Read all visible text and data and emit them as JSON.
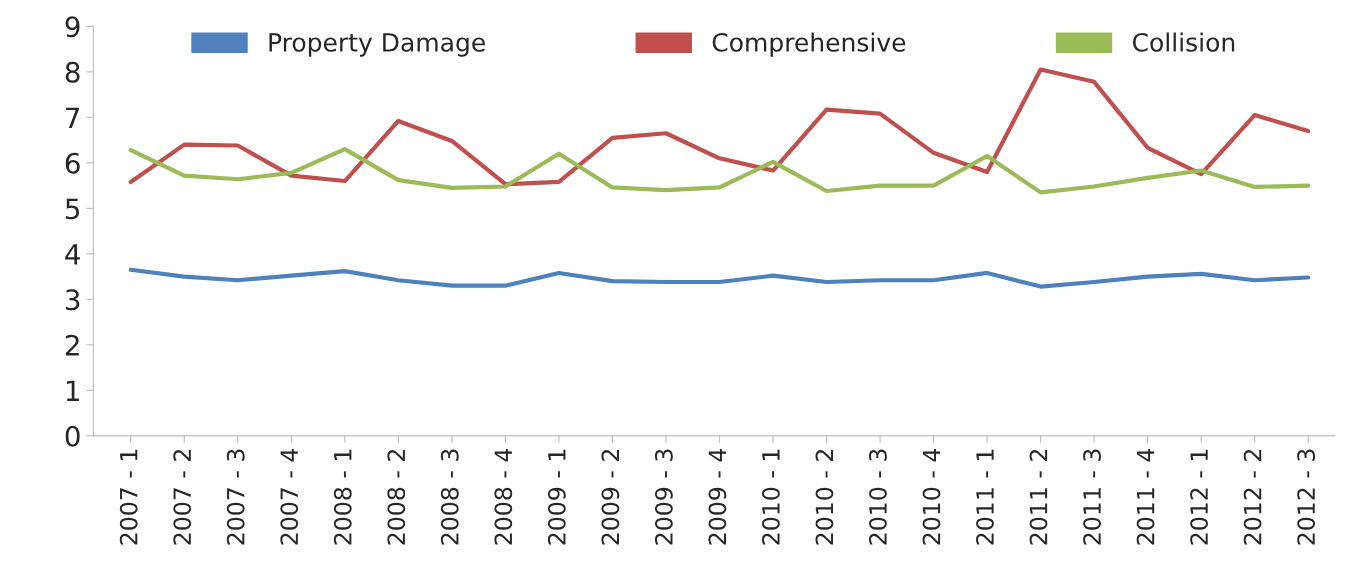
{
  "chart_data": {
    "type": "line",
    "categories": [
      "2007 - 1",
      "2007 - 2",
      "2007 - 3",
      "2007 - 4",
      "2008 - 1",
      "2008 - 2",
      "2008 - 3",
      "2008 - 4",
      "2009 - 1",
      "2009 - 2",
      "2009 - 3",
      "2009 - 4",
      "2010 - 1",
      "2010 - 2",
      "2010 - 3",
      "2010 - 4",
      "2011 - 1",
      "2011 - 2",
      "2011 - 3",
      "2011 - 4",
      "2012 - 1",
      "2012 - 2",
      "2012 - 3"
    ],
    "series": [
      {
        "name": "Property Damage",
        "color": "#4f81bd",
        "values": [
          3.65,
          3.5,
          3.42,
          3.52,
          3.62,
          3.42,
          3.3,
          3.3,
          3.58,
          3.4,
          3.38,
          3.38,
          3.52,
          3.38,
          3.42,
          3.42,
          3.58,
          3.28,
          3.38,
          3.5,
          3.56,
          3.42,
          3.48
        ]
      },
      {
        "name": "Comprehensive",
        "color": "#c0504d",
        "values": [
          5.58,
          6.4,
          6.38,
          5.72,
          5.6,
          6.92,
          6.48,
          5.53,
          5.58,
          6.55,
          6.65,
          6.1,
          5.83,
          7.17,
          7.08,
          6.22,
          5.8,
          8.05,
          7.78,
          6.33,
          5.75,
          7.05,
          6.7
        ]
      },
      {
        "name": "Collision",
        "color": "#9bbb59",
        "values": [
          6.28,
          5.72,
          5.64,
          5.78,
          6.3,
          5.62,
          5.45,
          5.48,
          6.2,
          5.46,
          5.4,
          5.46,
          6.02,
          5.38,
          5.5,
          5.5,
          6.15,
          5.35,
          5.48,
          5.67,
          5.83,
          5.47,
          5.5
        ]
      }
    ],
    "ylim": [
      0,
      9
    ],
    "yticks": [
      0,
      1,
      2,
      3,
      4,
      5,
      6,
      7,
      8,
      9
    ],
    "grid": false,
    "legend": "top",
    "marker": "none",
    "line_style": "solid"
  }
}
